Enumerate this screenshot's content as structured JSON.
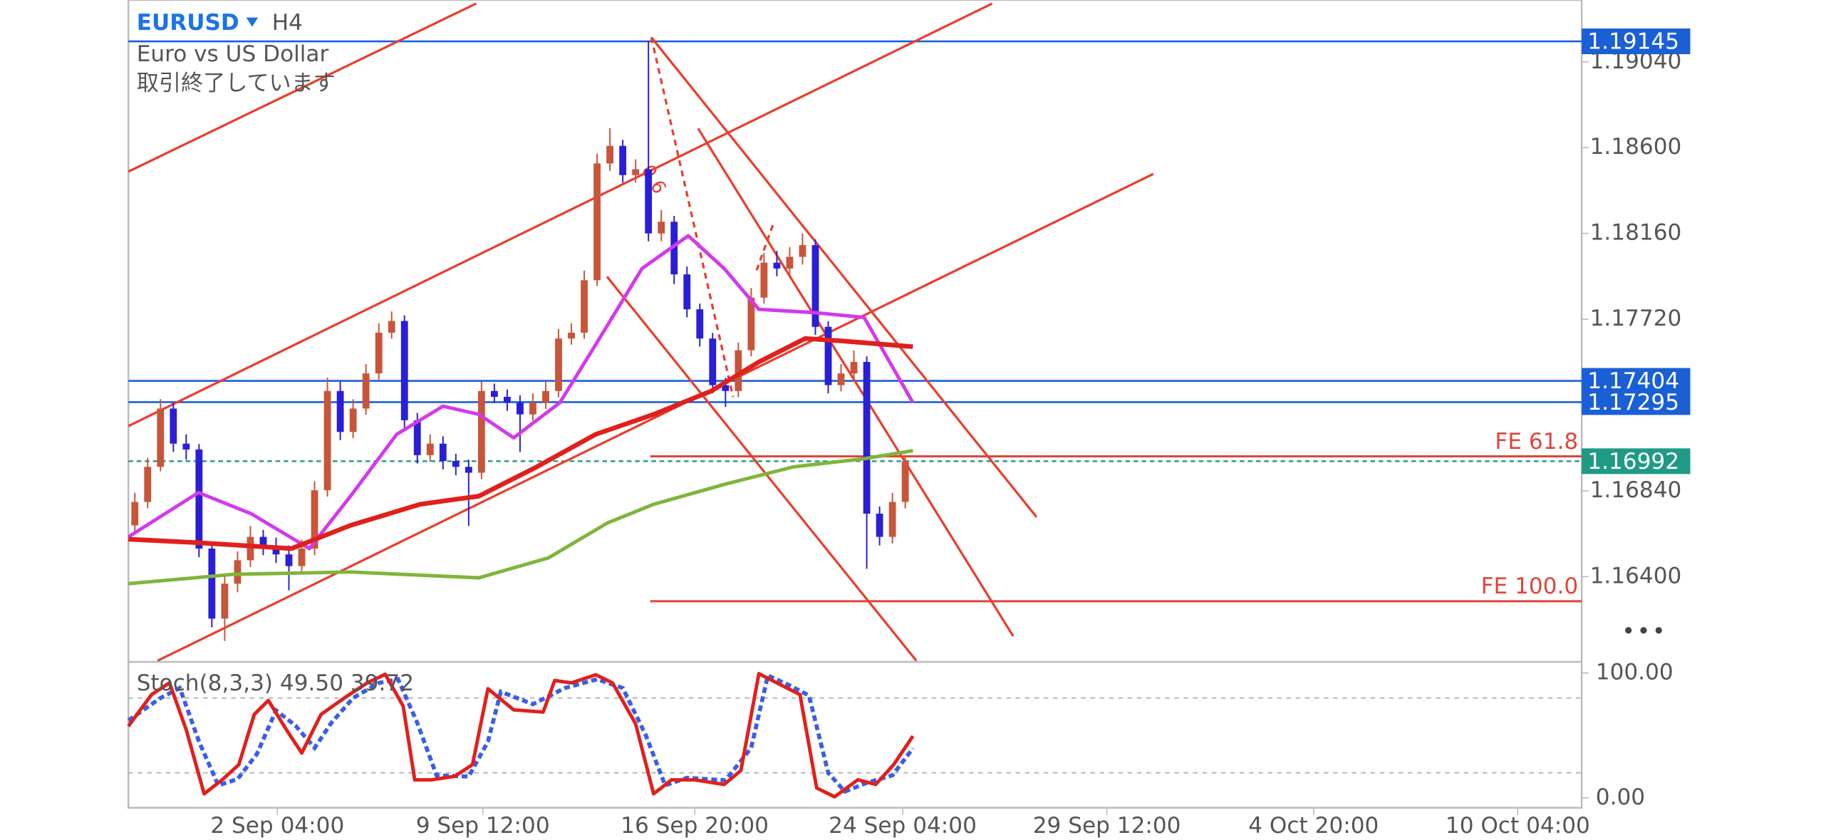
{
  "chart_data": {
    "type": "candlestick",
    "symbol": "EURUSD",
    "timeframe": "H4",
    "description": "Euro vs US Dollar",
    "status": "取引終了しています",
    "fib_label": "0.6",
    "up_color": "#c8553a",
    "down_color": "#2a1fd6",
    "xlim": [
      -0.5,
      112.68
    ],
    "xticks": [
      {
        "value": 11.1,
        "label": "2 Sep 04:00"
      },
      {
        "value": 27.1,
        "label": "9 Sep 12:00"
      },
      {
        "value": 43.6,
        "label": "16 Sep 20:00"
      },
      {
        "value": 59.8,
        "label": "24 Sep 04:00"
      },
      {
        "value": 75.7,
        "label": "29 Sep 12:00"
      },
      {
        "value": 91.8,
        "label": "4 Oct 20:00"
      },
      {
        "value": 107.7,
        "label": "10 Oct 04:00"
      }
    ],
    "ylim": [
      1.15963,
      1.19357
    ],
    "yticks": [
      {
        "value": 1.1904,
        "label": "1.19040"
      },
      {
        "value": 1.186,
        "label": "1.18600"
      },
      {
        "value": 1.1816,
        "label": "1.18160"
      },
      {
        "value": 1.1772,
        "label": "1.17720"
      },
      {
        "value": 1.1684,
        "label": "1.16840"
      },
      {
        "value": 1.164,
        "label": "1.16400"
      }
    ],
    "candles": [
      [
        1.16663,
        1.1683,
        1.1662,
        1.16783
      ],
      [
        1.16783,
        1.1701,
        1.1675,
        1.16963
      ],
      [
        1.16963,
        1.1731,
        1.1694,
        1.17262
      ],
      [
        1.17262,
        1.1729,
        1.1704,
        1.17082
      ],
      [
        1.17082,
        1.1713,
        1.17,
        1.17052
      ],
      [
        1.17052,
        1.1708,
        1.165,
        1.16544
      ],
      [
        1.16544,
        1.1658,
        1.1614,
        1.16185
      ],
      [
        1.16185,
        1.164,
        1.1607,
        1.16364
      ],
      [
        1.16364,
        1.1653,
        1.1632,
        1.16484
      ],
      [
        1.16484,
        1.1666,
        1.1645,
        1.16604
      ],
      [
        1.16604,
        1.1664,
        1.1651,
        1.16556
      ],
      [
        1.16556,
        1.166,
        1.1647,
        1.16514
      ],
      [
        1.16514,
        1.1656,
        1.1633,
        1.16454
      ],
      [
        1.16454,
        1.1659,
        1.1642,
        1.16544
      ],
      [
        1.16544,
        1.1689,
        1.1651,
        1.16843
      ],
      [
        1.16843,
        1.1742,
        1.1681,
        1.17352
      ],
      [
        1.17352,
        1.174,
        1.171,
        1.17142
      ],
      [
        1.17142,
        1.1731,
        1.1711,
        1.17262
      ],
      [
        1.17262,
        1.1749,
        1.1723,
        1.17442
      ],
      [
        1.17442,
        1.177,
        1.1741,
        1.17651
      ],
      [
        1.17651,
        1.1776,
        1.1762,
        1.17711
      ],
      [
        1.17711,
        1.1774,
        1.1716,
        1.17202
      ],
      [
        1.17202,
        1.1724,
        1.1698,
        1.17023
      ],
      [
        1.17023,
        1.1713,
        1.1699,
        1.17082
      ],
      [
        1.17082,
        1.1712,
        1.1695,
        1.16993
      ],
      [
        1.16993,
        1.1703,
        1.1692,
        1.16963
      ],
      [
        1.16963,
        1.17,
        1.1666,
        1.16933
      ],
      [
        1.16933,
        1.174,
        1.169,
        1.17352
      ],
      [
        1.17352,
        1.1739,
        1.1729,
        1.17322
      ],
      [
        1.17322,
        1.1736,
        1.1725,
        1.17292
      ],
      [
        1.17292,
        1.1733,
        1.1704,
        1.17232
      ],
      [
        1.17232,
        1.1734,
        1.172,
        1.17292
      ],
      [
        1.17292,
        1.174,
        1.1726,
        1.17352
      ],
      [
        1.17352,
        1.1767,
        1.1732,
        1.17621
      ],
      [
        1.17621,
        1.177,
        1.1759,
        1.17651
      ],
      [
        1.17651,
        1.1797,
        1.1762,
        1.1792
      ],
      [
        1.1792,
        1.1857,
        1.1789,
        1.18519
      ],
      [
        1.18519,
        1.187,
        1.1848,
        1.18609
      ],
      [
        1.18609,
        1.1864,
        1.1842,
        1.18459
      ],
      [
        1.18459,
        1.1854,
        1.1842,
        1.18489
      ],
      [
        1.18489,
        1.19145,
        1.1812,
        1.1816
      ],
      [
        1.1816,
        1.1828,
        1.1812,
        1.1822
      ],
      [
        1.1822,
        1.1825,
        1.179,
        1.1795
      ],
      [
        1.1795,
        1.1799,
        1.1773,
        1.17771
      ],
      [
        1.17771,
        1.178,
        1.1758,
        1.17621
      ],
      [
        1.17621,
        1.1765,
        1.1734,
        1.17382
      ],
      [
        1.17382,
        1.1742,
        1.1727,
        1.17352
      ],
      [
        1.17352,
        1.176,
        1.1732,
        1.17561
      ],
      [
        1.17561,
        1.1788,
        1.1753,
        1.17831
      ],
      [
        1.17831,
        1.1806,
        1.178,
        1.1801
      ],
      [
        1.1801,
        1.1807,
        1.1794,
        1.1798
      ],
      [
        1.1798,
        1.1809,
        1.1795,
        1.1804
      ],
      [
        1.1804,
        1.1816,
        1.18,
        1.181
      ],
      [
        1.181,
        1.1813,
        1.1764,
        1.17681
      ],
      [
        1.17681,
        1.1771,
        1.1734,
        1.17382
      ],
      [
        1.17382,
        1.1749,
        1.1735,
        1.17442
      ],
      [
        1.17442,
        1.1756,
        1.1741,
        1.17501
      ],
      [
        1.17501,
        1.1753,
        1.1644,
        1.16723
      ],
      [
        1.16723,
        1.1676,
        1.1656,
        1.16604
      ],
      [
        1.16604,
        1.1683,
        1.1657,
        1.16783
      ],
      [
        1.16783,
        1.1702,
        1.1675,
        1.16992
      ]
    ],
    "moving_averages": [
      {
        "color": "#7fb53a",
        "width": 3,
        "x": [
          -0.5,
          7.7,
          16.8,
          26.8,
          32.2,
          36.8,
          40.4,
          45.9,
          51.3,
          56.8,
          60.6
        ],
        "values": [
          1.16364,
          1.16412,
          1.16424,
          1.16394,
          1.16496,
          1.16675,
          1.16771,
          1.16873,
          1.16963,
          1.17005,
          1.17046
        ]
      },
      {
        "color": "#d23aeb",
        "width": 3,
        "x": [
          -0.5,
          4.95,
          9.05,
          13.6,
          16.8,
          20.4,
          24,
          26.8,
          29.5,
          33.1,
          35.9,
          39.5,
          43.1,
          45.9,
          48.6,
          53.1,
          56.8,
          60.6
        ],
        "values": [
          1.16604,
          1.16831,
          1.16723,
          1.16544,
          1.16813,
          1.1713,
          1.17274,
          1.17232,
          1.17112,
          1.17292,
          1.17591,
          1.1798,
          1.18148,
          1.1798,
          1.17771,
          1.17753,
          1.17729,
          1.17292
        ]
      },
      {
        "color": "#e0201c",
        "width": 4,
        "x": [
          -0.5,
          4.95,
          12.2,
          16.8,
          22.2,
          26.8,
          31.3,
          35.9,
          40.4,
          44.9,
          48.6,
          52.2,
          55,
          60.6
        ],
        "values": [
          1.16592,
          1.16574,
          1.16544,
          1.16663,
          1.16771,
          1.16813,
          1.16963,
          1.1713,
          1.17232,
          1.17352,
          1.17501,
          1.17621,
          1.17609,
          1.17579
        ]
      }
    ],
    "hlines": [
      {
        "value": 1.19145,
        "color": "#1a5fd6"
      },
      {
        "value": 1.17404,
        "color": "#1a5fd6"
      },
      {
        "value": 1.17295,
        "color": "#1a5fd6"
      }
    ],
    "current_price": 1.16992,
    "current_color": "#1f9a86",
    "fe_levels": [
      {
        "label": "FE 61.8",
        "value": 1.17017
      },
      {
        "label": "FE 100.0",
        "value": 1.16274
      }
    ],
    "fe_color": "#e0453a",
    "stochastic": {
      "label": "Stoch(8,3,3) 49.50 39.72",
      "ylim": [
        -8,
        108
      ],
      "yticks": [
        {
          "value": 100,
          "label": "100.00"
        },
        {
          "value": 0,
          "label": "0.00"
        }
      ],
      "levels": [
        80,
        20
      ],
      "main": {
        "color": "#e0201c",
        "x": [
          -0.5,
          1.3,
          2.7,
          4,
          5.4,
          6.8,
          8.1,
          9.3,
          10.4,
          11.8,
          13,
          14.5,
          16.3,
          18.1,
          19.5,
          20.9,
          21.8,
          23.1,
          24.9,
          26.3,
          27.5,
          29.5,
          31.8,
          32.7,
          34,
          35.9,
          37.2,
          39,
          40.4,
          41.8,
          43.6,
          45.9,
          47.2,
          48.6,
          50,
          51.8,
          53.1,
          54.5,
          56.3,
          57.7,
          59.1,
          60.6
        ],
        "values": [
          57.4,
          82.7,
          92.1,
          54.6,
          3.2,
          14.4,
          26.6,
          66.8,
          78,
          54.6,
          35.9,
          66.8,
          79.9,
          92.1,
          99,
          73.4,
          14.4,
          14.4,
          17.2,
          26.6,
          87.4,
          70.5,
          68.7,
          94,
          92.1,
          98.6,
          92.1,
          59.3,
          3.2,
          14.4,
          14.4,
          10.7,
          21.9,
          99.5,
          92.1,
          82.7,
          7.9,
          0.8,
          14.4,
          10.7,
          26.6,
          49.5
        ]
      },
      "signal": {
        "color": "#3a5ee8",
        "x": [
          -0.5,
          2,
          3.5,
          5,
          6.5,
          8,
          9.5,
          11,
          12.5,
          14,
          15.3,
          17,
          19,
          20.5,
          22,
          23.5,
          26,
          27.5,
          28.5,
          31,
          33.5,
          36,
          38,
          39.8,
          41.3,
          43,
          46,
          48,
          49.3,
          51,
          52.5,
          54,
          55.3,
          57,
          59,
          60.6
        ],
        "values": [
          62,
          80,
          88,
          45,
          10,
          15,
          35,
          70,
          58,
          40,
          60,
          80,
          92,
          95,
          60,
          18,
          17,
          45,
          85,
          75,
          88,
          95,
          88,
          50,
          10,
          16,
          14,
          40,
          98,
          90,
          82,
          20,
          5,
          12,
          18,
          39.72
        ]
      }
    }
  }
}
